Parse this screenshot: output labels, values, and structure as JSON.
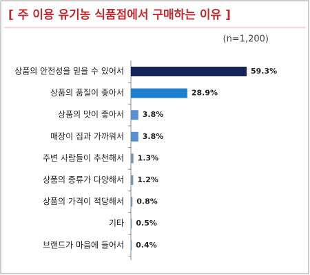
{
  "chart_data": {
    "type": "bar",
    "orientation": "horizontal",
    "title": "[ 주 이용 유기농 식품점에서 구매하는 이유 ]",
    "subtitle": "(n=1,200)",
    "categories": [
      "상품의 안전성을 믿을 수 있어서",
      "상품의 품질이 좋아서",
      "상품의 맛이 좋아서",
      "매장이 집과 가까워서",
      "주변 사람들이 추천해서",
      "상품의 종류가 다양해서",
      "상품의 가격이 적당해서",
      "기타",
      "브랜드가 마음에 들어서"
    ],
    "values": [
      59.3,
      28.9,
      3.8,
      3.8,
      1.3,
      1.2,
      0.8,
      0.5,
      0.4
    ],
    "value_labels": [
      "59.3%",
      "28.9%",
      "3.8%",
      "3.8%",
      "1.3%",
      "1.2%",
      "0.8%",
      "0.5%",
      "0.4%"
    ],
    "colors": [
      "#14245a",
      "#1f7fcc",
      "#5b8fd3",
      "#5b8fd3",
      "#7f93b4",
      "#7f93b4",
      "#7f93b4",
      "#7f93b4",
      "#7f93b4"
    ]
  }
}
